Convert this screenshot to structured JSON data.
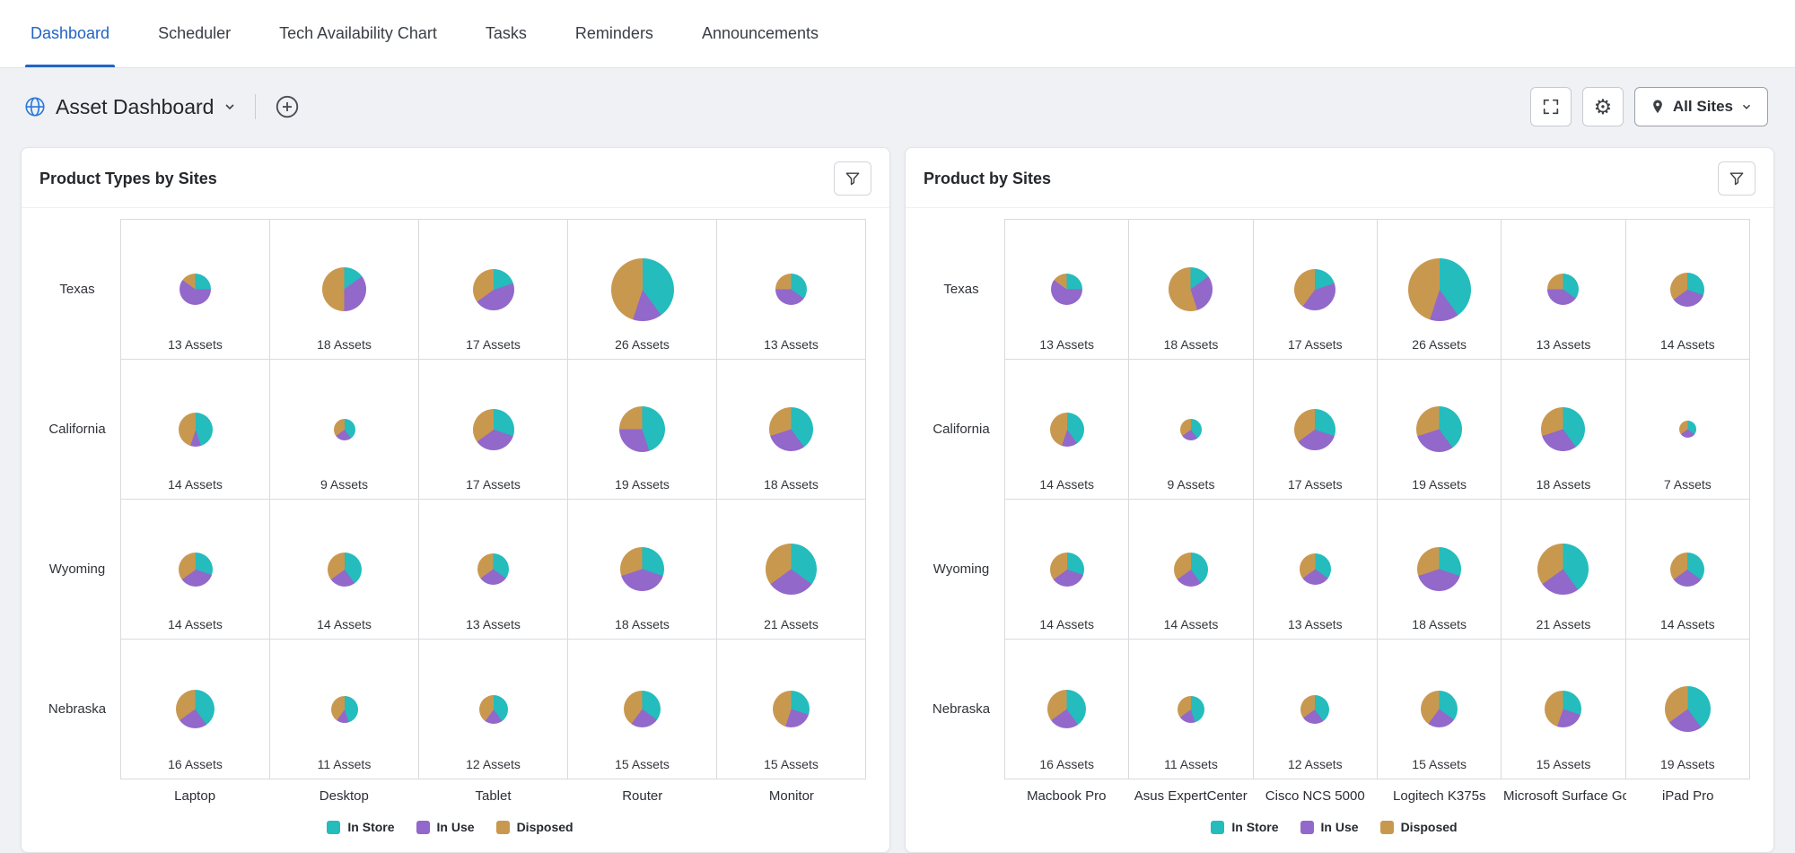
{
  "nav": {
    "tabs": [
      {
        "label": "Dashboard",
        "active": true
      },
      {
        "label": "Scheduler",
        "active": false
      },
      {
        "label": "Tech Availability Chart",
        "active": false
      },
      {
        "label": "Tasks",
        "active": false
      },
      {
        "label": "Reminders",
        "active": false
      },
      {
        "label": "Announcements",
        "active": false
      }
    ]
  },
  "toolbar": {
    "title": "Asset Dashboard",
    "site_filter": "All Sites"
  },
  "legend": [
    {
      "label": "In Store",
      "color": "#24bcbc"
    },
    {
      "label": "In Use",
      "color": "#9268cb"
    },
    {
      "label": "Disposed",
      "color": "#c9984f"
    }
  ],
  "chart_data": [
    {
      "type": "pie",
      "title": "Product Types by Sites",
      "unit": "Assets",
      "series_names": [
        "In Store",
        "In Use",
        "Disposed"
      ],
      "columns": [
        "Laptop",
        "Desktop",
        "Tablet",
        "Router",
        "Monitor"
      ],
      "rows": [
        "Texas",
        "California",
        "Wyoming",
        "Nebraska"
      ],
      "cells": [
        [
          {
            "assets": 13,
            "slices": [
              25,
              60,
              15
            ]
          },
          {
            "assets": 18,
            "slices": [
              15,
              35,
              50
            ]
          },
          {
            "assets": 17,
            "slices": [
              20,
              45,
              35
            ]
          },
          {
            "assets": 26,
            "slices": [
              40,
              15,
              45
            ]
          },
          {
            "assets": 13,
            "slices": [
              35,
              40,
              25
            ]
          }
        ],
        [
          {
            "assets": 14,
            "slices": [
              45,
              10,
              45
            ]
          },
          {
            "assets": 9,
            "slices": [
              40,
              25,
              35
            ]
          },
          {
            "assets": 17,
            "slices": [
              30,
              35,
              35
            ]
          },
          {
            "assets": 19,
            "slices": [
              45,
              30,
              25
            ]
          },
          {
            "assets": 18,
            "slices": [
              40,
              30,
              30
            ]
          }
        ],
        [
          {
            "assets": 14,
            "slices": [
              30,
              35,
              35
            ]
          },
          {
            "assets": 14,
            "slices": [
              40,
              25,
              35
            ]
          },
          {
            "assets": 13,
            "slices": [
              35,
              30,
              35
            ]
          },
          {
            "assets": 18,
            "slices": [
              30,
              40,
              30
            ]
          },
          {
            "assets": 21,
            "slices": [
              35,
              30,
              35
            ]
          }
        ],
        [
          {
            "assets": 16,
            "slices": [
              40,
              25,
              35
            ]
          },
          {
            "assets": 11,
            "slices": [
              45,
              15,
              40
            ]
          },
          {
            "assets": 12,
            "slices": [
              40,
              20,
              40
            ]
          },
          {
            "assets": 15,
            "slices": [
              35,
              25,
              40
            ]
          },
          {
            "assets": 15,
            "slices": [
              30,
              25,
              45
            ]
          }
        ]
      ]
    },
    {
      "type": "pie",
      "title": "Product by Sites",
      "unit": "Assets",
      "series_names": [
        "In Store",
        "In Use",
        "Disposed"
      ],
      "columns": [
        "Macbook Pro",
        "Asus ExpertCenter",
        "Cisco NCS 5000",
        "Logitech K375s",
        "Microsoft Surface Go",
        "iPad Pro"
      ],
      "rows": [
        "Texas",
        "California",
        "Wyoming",
        "Nebraska"
      ],
      "cells": [
        [
          {
            "assets": 13,
            "slices": [
              25,
              60,
              15
            ]
          },
          {
            "assets": 18,
            "slices": [
              15,
              30,
              55
            ]
          },
          {
            "assets": 17,
            "slices": [
              20,
              40,
              40
            ]
          },
          {
            "assets": 26,
            "slices": [
              40,
              15,
              45
            ]
          },
          {
            "assets": 13,
            "slices": [
              35,
              40,
              25
            ]
          },
          {
            "assets": 14,
            "slices": [
              30,
              35,
              35
            ]
          }
        ],
        [
          {
            "assets": 14,
            "slices": [
              40,
              15,
              45
            ]
          },
          {
            "assets": 9,
            "slices": [
              40,
              25,
              35
            ]
          },
          {
            "assets": 17,
            "slices": [
              30,
              35,
              35
            ]
          },
          {
            "assets": 19,
            "slices": [
              40,
              30,
              30
            ]
          },
          {
            "assets": 18,
            "slices": [
              40,
              30,
              30
            ]
          },
          {
            "assets": 7,
            "slices": [
              35,
              30,
              35
            ]
          }
        ],
        [
          {
            "assets": 14,
            "slices": [
              30,
              35,
              35
            ]
          },
          {
            "assets": 14,
            "slices": [
              40,
              25,
              35
            ]
          },
          {
            "assets": 13,
            "slices": [
              35,
              30,
              35
            ]
          },
          {
            "assets": 18,
            "slices": [
              30,
              40,
              30
            ]
          },
          {
            "assets": 21,
            "slices": [
              40,
              25,
              35
            ]
          },
          {
            "assets": 14,
            "slices": [
              35,
              30,
              35
            ]
          }
        ],
        [
          {
            "assets": 16,
            "slices": [
              40,
              25,
              35
            ]
          },
          {
            "assets": 11,
            "slices": [
              45,
              20,
              35
            ]
          },
          {
            "assets": 12,
            "slices": [
              40,
              25,
              35
            ]
          },
          {
            "assets": 15,
            "slices": [
              35,
              25,
              40
            ]
          },
          {
            "assets": 15,
            "slices": [
              30,
              25,
              45
            ]
          },
          {
            "assets": 19,
            "slices": [
              40,
              25,
              35
            ]
          }
        ]
      ]
    }
  ]
}
